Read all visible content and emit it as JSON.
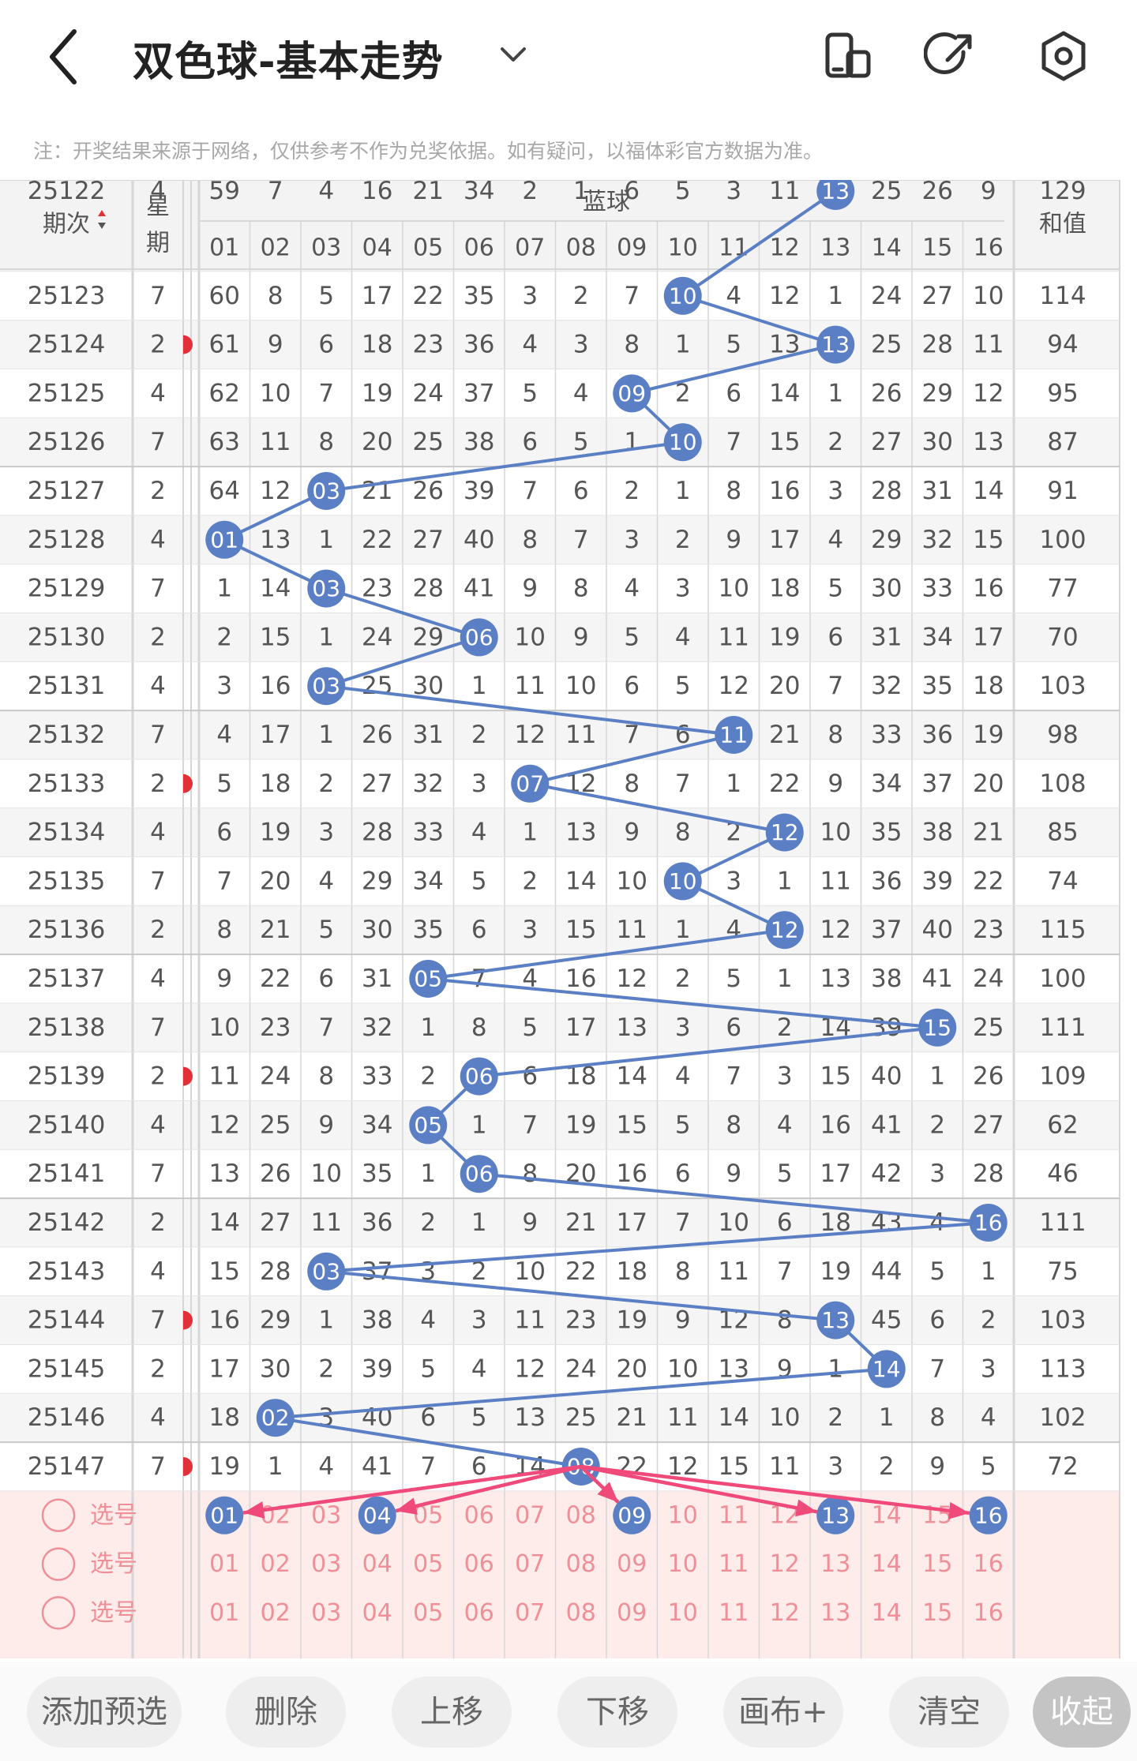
{
  "header": {
    "title": "双色球-基本走势",
    "note": "注：开奖结果来源于网络，仅供参考不作为兑奖依据。如有疑问，以福体彩官方数据为准。"
  },
  "table": {
    "col_issue": "期次",
    "col_weekday_1": "星",
    "col_weekday_2": "期",
    "blue_group": "蓝球",
    "blue_cols": [
      "01",
      "02",
      "03",
      "04",
      "05",
      "06",
      "07",
      "08",
      "09",
      "10",
      "11",
      "12",
      "13",
      "14",
      "15",
      "16"
    ],
    "col_sum": "和值",
    "partial_row": {
      "issue": "25122",
      "weekday": "4",
      "cells": [
        "59",
        "7",
        "4",
        "16",
        "21",
        "34",
        "2",
        "1",
        "6",
        "5",
        "3",
        "11",
        "13",
        "25",
        "26",
        "9"
      ],
      "sum": "129"
    },
    "rows": [
      {
        "issue": "25123",
        "weekday": "7",
        "hit": 10,
        "cells": [
          "60",
          "8",
          "5",
          "17",
          "22",
          "35",
          "3",
          "2",
          "7",
          "10",
          "4",
          "12",
          "1",
          "24",
          "27",
          "10"
        ],
        "sum": "114"
      },
      {
        "issue": "25124",
        "weekday": "2",
        "hit": 13,
        "cells": [
          "61",
          "9",
          "6",
          "18",
          "23",
          "36",
          "4",
          "3",
          "8",
          "1",
          "5",
          "13",
          "13",
          "25",
          "28",
          "11"
        ],
        "sum": "94"
      },
      {
        "issue": "25125",
        "weekday": "4",
        "hit": 9,
        "cells": [
          "62",
          "10",
          "7",
          "19",
          "24",
          "37",
          "5",
          "4",
          "09",
          "2",
          "6",
          "14",
          "1",
          "26",
          "29",
          "12"
        ],
        "sum": "95"
      },
      {
        "issue": "25126",
        "weekday": "7",
        "hit": 10,
        "cells": [
          "63",
          "11",
          "8",
          "20",
          "25",
          "38",
          "6",
          "5",
          "1",
          "10",
          "7",
          "15",
          "2",
          "27",
          "30",
          "13"
        ],
        "sum": "87"
      },
      {
        "issue": "25127",
        "weekday": "2",
        "hit": 3,
        "cells": [
          "64",
          "12",
          "03",
          "21",
          "26",
          "39",
          "7",
          "6",
          "2",
          "1",
          "8",
          "16",
          "3",
          "28",
          "31",
          "14"
        ],
        "sum": "91"
      },
      {
        "issue": "25128",
        "weekday": "4",
        "hit": 1,
        "cells": [
          "01",
          "13",
          "1",
          "22",
          "27",
          "40",
          "8",
          "7",
          "3",
          "2",
          "9",
          "17",
          "4",
          "29",
          "32",
          "15"
        ],
        "sum": "100"
      },
      {
        "issue": "25129",
        "weekday": "7",
        "hit": 3,
        "cells": [
          "1",
          "14",
          "03",
          "23",
          "28",
          "41",
          "9",
          "8",
          "4",
          "3",
          "10",
          "18",
          "5",
          "30",
          "33",
          "16"
        ],
        "sum": "77"
      },
      {
        "issue": "25130",
        "weekday": "2",
        "hit": 6,
        "cells": [
          "2",
          "15",
          "1",
          "24",
          "29",
          "06",
          "10",
          "9",
          "5",
          "4",
          "11",
          "19",
          "6",
          "31",
          "34",
          "17"
        ],
        "sum": "70"
      },
      {
        "issue": "25131",
        "weekday": "4",
        "hit": 3,
        "cells": [
          "3",
          "16",
          "03",
          "25",
          "30",
          "1",
          "11",
          "10",
          "6",
          "5",
          "12",
          "20",
          "7",
          "32",
          "35",
          "18"
        ],
        "sum": "103"
      },
      {
        "issue": "25132",
        "weekday": "7",
        "hit": 11,
        "cells": [
          "4",
          "17",
          "1",
          "26",
          "31",
          "2",
          "12",
          "11",
          "7",
          "6",
          "11",
          "21",
          "8",
          "33",
          "36",
          "19"
        ],
        "sum": "98"
      },
      {
        "issue": "25133",
        "weekday": "2",
        "hit": 7,
        "cells": [
          "5",
          "18",
          "2",
          "27",
          "32",
          "3",
          "07",
          "12",
          "8",
          "7",
          "1",
          "22",
          "9",
          "34",
          "37",
          "20"
        ],
        "sum": "108"
      },
      {
        "issue": "25134",
        "weekday": "4",
        "hit": 12,
        "cells": [
          "6",
          "19",
          "3",
          "28",
          "33",
          "4",
          "1",
          "13",
          "9",
          "8",
          "2",
          "12",
          "10",
          "35",
          "38",
          "21"
        ],
        "sum": "85"
      },
      {
        "issue": "25135",
        "weekday": "7",
        "hit": 10,
        "cells": [
          "7",
          "20",
          "4",
          "29",
          "34",
          "5",
          "2",
          "14",
          "10",
          "10",
          "3",
          "1",
          "11",
          "36",
          "39",
          "22"
        ],
        "sum": "74"
      },
      {
        "issue": "25136",
        "weekday": "2",
        "hit": 12,
        "cells": [
          "8",
          "21",
          "5",
          "30",
          "35",
          "6",
          "3",
          "15",
          "11",
          "1",
          "4",
          "12",
          "12",
          "37",
          "40",
          "23"
        ],
        "sum": "115"
      },
      {
        "issue": "25137",
        "weekday": "4",
        "hit": 5,
        "cells": [
          "9",
          "22",
          "6",
          "31",
          "05",
          "7",
          "4",
          "16",
          "12",
          "2",
          "5",
          "1",
          "13",
          "38",
          "41",
          "24"
        ],
        "sum": "100"
      },
      {
        "issue": "25138",
        "weekday": "7",
        "hit": 15,
        "cells": [
          "10",
          "23",
          "7",
          "32",
          "1",
          "8",
          "5",
          "17",
          "13",
          "3",
          "6",
          "2",
          "14",
          "39",
          "15",
          "25"
        ],
        "sum": "111"
      },
      {
        "issue": "25139",
        "weekday": "2",
        "hit": 6,
        "cells": [
          "11",
          "24",
          "8",
          "33",
          "2",
          "06",
          "6",
          "18",
          "14",
          "4",
          "7",
          "3",
          "15",
          "40",
          "1",
          "26"
        ],
        "sum": "109"
      },
      {
        "issue": "25140",
        "weekday": "4",
        "hit": 5,
        "cells": [
          "12",
          "25",
          "9",
          "34",
          "05",
          "1",
          "7",
          "19",
          "15",
          "5",
          "8",
          "4",
          "16",
          "41",
          "2",
          "27"
        ],
        "sum": "62"
      },
      {
        "issue": "25141",
        "weekday": "7",
        "hit": 6,
        "cells": [
          "13",
          "26",
          "10",
          "35",
          "1",
          "06",
          "8",
          "20",
          "16",
          "6",
          "9",
          "5",
          "17",
          "42",
          "3",
          "28"
        ],
        "sum": "46"
      },
      {
        "issue": "25142",
        "weekday": "2",
        "hit": 16,
        "cells": [
          "14",
          "27",
          "11",
          "36",
          "2",
          "1",
          "9",
          "21",
          "17",
          "7",
          "10",
          "6",
          "18",
          "43",
          "4",
          "16"
        ],
        "sum": "111"
      },
      {
        "issue": "25143",
        "weekday": "4",
        "hit": 3,
        "cells": [
          "15",
          "28",
          "03",
          "37",
          "3",
          "2",
          "10",
          "22",
          "18",
          "8",
          "11",
          "7",
          "19",
          "44",
          "5",
          "1"
        ],
        "sum": "75"
      },
      {
        "issue": "25144",
        "weekday": "7",
        "hit": 13,
        "cells": [
          "16",
          "29",
          "1",
          "38",
          "4",
          "3",
          "11",
          "23",
          "19",
          "9",
          "12",
          "8",
          "13",
          "45",
          "6",
          "2"
        ],
        "sum": "103"
      },
      {
        "issue": "25145",
        "weekday": "2",
        "hit": 14,
        "cells": [
          "17",
          "30",
          "2",
          "39",
          "5",
          "4",
          "12",
          "24",
          "20",
          "10",
          "13",
          "9",
          "1",
          "14",
          "7",
          "3"
        ],
        "sum": "113"
      },
      {
        "issue": "25146",
        "weekday": "4",
        "hit": 2,
        "cells": [
          "18",
          "02",
          "3",
          "40",
          "6",
          "5",
          "13",
          "25",
          "21",
          "11",
          "14",
          "10",
          "2",
          "1",
          "8",
          "4"
        ],
        "sum": "102"
      },
      {
        "issue": "25147",
        "weekday": "7",
        "hit": 8,
        "cells": [
          "19",
          "1",
          "4",
          "41",
          "7",
          "6",
          "14",
          "08",
          "22",
          "12",
          "15",
          "11",
          "3",
          "2",
          "9",
          "5"
        ],
        "sum": "72"
      }
    ]
  },
  "pick_rows": {
    "label": "选号",
    "numbers": [
      "01",
      "02",
      "03",
      "04",
      "05",
      "06",
      "07",
      "08",
      "09",
      "10",
      "11",
      "12",
      "13",
      "14",
      "15",
      "16"
    ],
    "selected_row1": [
      1,
      4,
      9,
      13,
      16
    ]
  },
  "footer": {
    "add_preselect": "添加预选",
    "delete": "删除",
    "move_up": "上移",
    "move_down": "下移",
    "canvas_plus": "画布+",
    "clear": "清空",
    "collapse": "收起"
  },
  "colors": {
    "blue_ball": "#5b7fc4",
    "trend_line": "#5b7fc4",
    "pick_text": "#ef8f97",
    "pick_bg": "#fdece9",
    "arrow": "#ef4a7a",
    "header_bg": "#f3f3f3",
    "alt_row_bg": "#f5f5f5"
  }
}
